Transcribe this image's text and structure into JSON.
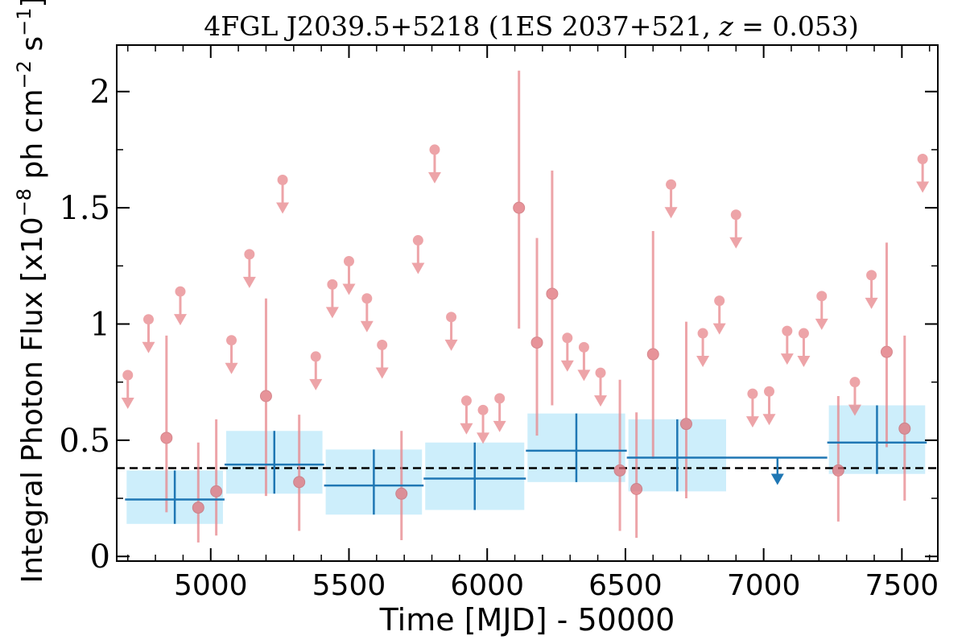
{
  "chart_data": {
    "type": "scatter",
    "title": "4FGL J2039.5+5218 (1ES 2037+521, z = 0.053)",
    "xlabel": "Time [MJD] - 50000",
    "ylabel": "Integral Photon Flux [x10^-8 ph cm^-2 s^-1]",
    "xlim": [
      4660,
      7630
    ],
    "ylim": [
      -0.02,
      2.2
    ],
    "xticks": [
      5000,
      5500,
      6000,
      6500,
      7000,
      7500
    ],
    "xtick_labels": [
      "5000",
      "5500",
      "6000",
      "6500",
      "7000",
      "7500"
    ],
    "yticks": [
      0,
      0.5,
      1,
      1.5,
      2
    ],
    "ytick_labels": [
      "0",
      "0.5",
      "1",
      "1.5",
      "2"
    ],
    "mean_flux": 0.38,
    "colors": {
      "fine": "#e8868c",
      "coarse": "#1f77b4",
      "band": "#cdeefb",
      "mean_line": "#000000"
    },
    "fine_points": [
      {
        "x": 4840,
        "y": 0.51,
        "lo": 0.19,
        "hi": 0.95
      },
      {
        "x": 4955,
        "y": 0.21,
        "lo": 0.06,
        "hi": 0.49
      },
      {
        "x": 5020,
        "y": 0.28,
        "lo": 0.09,
        "hi": 0.59
      },
      {
        "x": 5200,
        "y": 0.69,
        "lo": 0.26,
        "hi": 1.11
      },
      {
        "x": 5320,
        "y": 0.32,
        "lo": 0.11,
        "hi": 0.61
      },
      {
        "x": 5690,
        "y": 0.27,
        "lo": 0.07,
        "hi": 0.54
      },
      {
        "x": 6115,
        "y": 1.5,
        "lo": 0.98,
        "hi": 2.09
      },
      {
        "x": 6180,
        "y": 0.92,
        "lo": 0.52,
        "hi": 1.37
      },
      {
        "x": 6235,
        "y": 1.13,
        "lo": 0.65,
        "hi": 1.66
      },
      {
        "x": 6480,
        "y": 0.37,
        "lo": 0.11,
        "hi": 0.76
      },
      {
        "x": 6540,
        "y": 0.29,
        "lo": 0.08,
        "hi": 0.62
      },
      {
        "x": 6600,
        "y": 0.87,
        "lo": 0.42,
        "hi": 1.4
      },
      {
        "x": 6720,
        "y": 0.57,
        "lo": 0.25,
        "hi": 1.01
      },
      {
        "x": 7270,
        "y": 0.37,
        "lo": 0.15,
        "hi": 0.69
      },
      {
        "x": 7445,
        "y": 0.88,
        "lo": 0.47,
        "hi": 1.35
      },
      {
        "x": 7510,
        "y": 0.55,
        "lo": 0.24,
        "hi": 0.95
      }
    ],
    "fine_upper_limits": [
      {
        "x": 4700,
        "y": 0.78
      },
      {
        "x": 4775,
        "y": 1.02
      },
      {
        "x": 4890,
        "y": 1.14
      },
      {
        "x": 5075,
        "y": 0.93
      },
      {
        "x": 5140,
        "y": 1.3
      },
      {
        "x": 5260,
        "y": 1.62
      },
      {
        "x": 5380,
        "y": 0.86
      },
      {
        "x": 5440,
        "y": 1.17
      },
      {
        "x": 5500,
        "y": 1.27
      },
      {
        "x": 5565,
        "y": 1.11
      },
      {
        "x": 5620,
        "y": 0.91
      },
      {
        "x": 5750,
        "y": 1.36
      },
      {
        "x": 5810,
        "y": 1.75
      },
      {
        "x": 5870,
        "y": 1.03
      },
      {
        "x": 5925,
        "y": 0.67
      },
      {
        "x": 5985,
        "y": 0.63
      },
      {
        "x": 6045,
        "y": 0.68
      },
      {
        "x": 6290,
        "y": 0.94
      },
      {
        "x": 6350,
        "y": 0.9
      },
      {
        "x": 6410,
        "y": 0.79
      },
      {
        "x": 6665,
        "y": 1.6
      },
      {
        "x": 6780,
        "y": 0.96
      },
      {
        "x": 6840,
        "y": 1.1
      },
      {
        "x": 6900,
        "y": 1.47
      },
      {
        "x": 6960,
        "y": 0.7
      },
      {
        "x": 7020,
        "y": 0.71
      },
      {
        "x": 7085,
        "y": 0.97
      },
      {
        "x": 7145,
        "y": 0.96
      },
      {
        "x": 7210,
        "y": 1.12
      },
      {
        "x": 7330,
        "y": 0.75
      },
      {
        "x": 7390,
        "y": 1.21
      },
      {
        "x": 7575,
        "y": 1.71
      }
    ],
    "coarse_bins": [
      {
        "x0": 4690,
        "x1": 5050,
        "y": 0.245,
        "lo": 0.14,
        "hi": 0.37,
        "band_lo": 0.14,
        "band_hi": 0.37
      },
      {
        "x0": 5050,
        "x1": 5410,
        "y": 0.395,
        "lo": 0.27,
        "hi": 0.54,
        "band_lo": 0.27,
        "band_hi": 0.54
      },
      {
        "x0": 5410,
        "x1": 5770,
        "y": 0.305,
        "lo": 0.18,
        "hi": 0.46,
        "band_lo": 0.18,
        "band_hi": 0.46
      },
      {
        "x0": 5770,
        "x1": 6140,
        "y": 0.335,
        "lo": 0.2,
        "hi": 0.49,
        "band_lo": 0.2,
        "band_hi": 0.49
      },
      {
        "x0": 6140,
        "x1": 6505,
        "y": 0.455,
        "lo": 0.32,
        "hi": 0.615,
        "band_lo": 0.32,
        "band_hi": 0.615
      },
      {
        "x0": 6505,
        "x1": 6870,
        "y": 0.425,
        "lo": 0.28,
        "hi": 0.59,
        "band_lo": 0.28,
        "band_hi": 0.59
      },
      {
        "x0": 7230,
        "x1": 7590,
        "y": 0.49,
        "lo": 0.355,
        "hi": 0.65,
        "band_lo": 0.355,
        "band_hi": 0.65
      }
    ],
    "coarse_upper_limits": [
      {
        "x0": 6870,
        "x1": 7230,
        "y": 0.425
      }
    ]
  }
}
